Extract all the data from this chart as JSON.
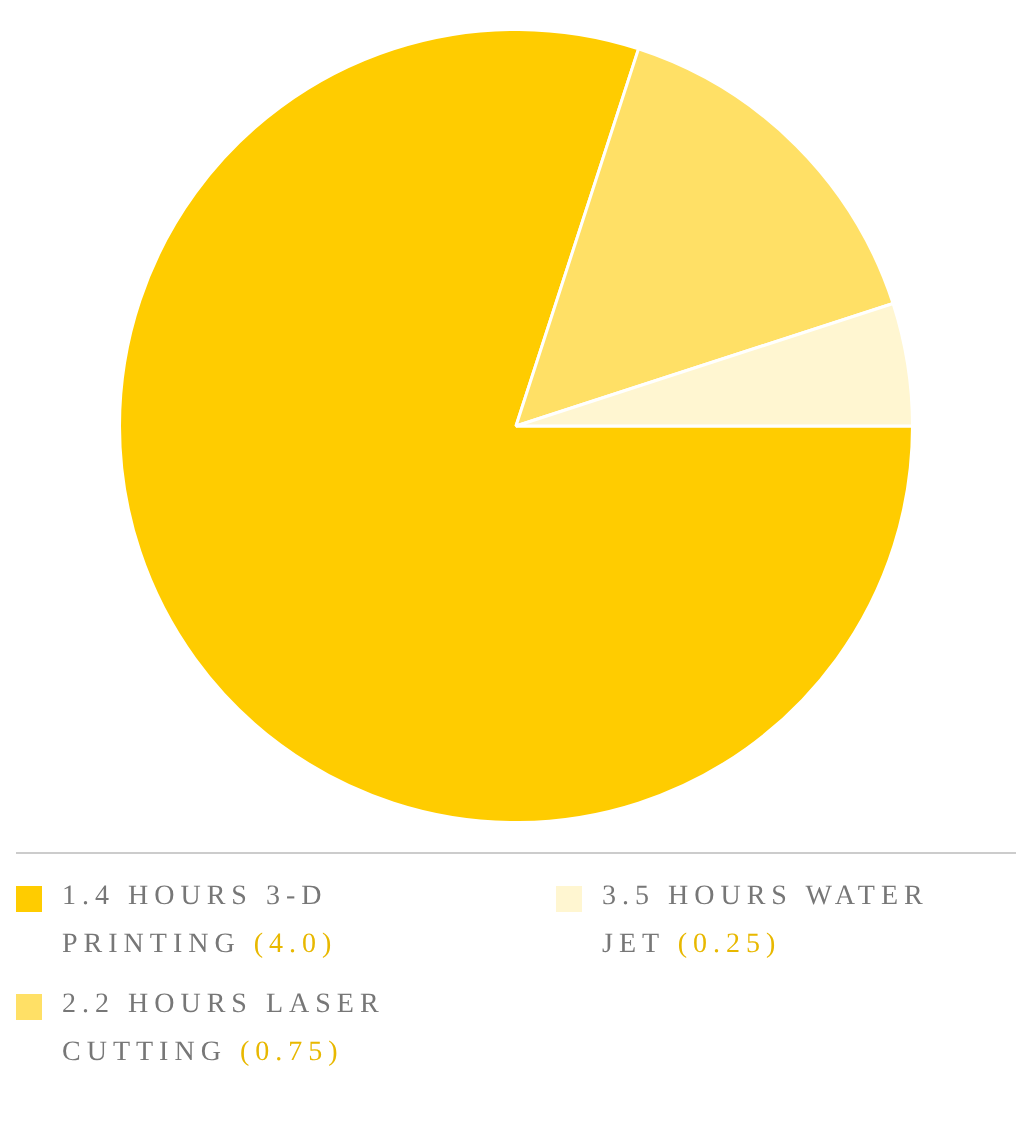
{
  "chart_data": {
    "type": "pie",
    "categories": [
      "1.4 HOURS 3-D PRINTING",
      "2.2 HOURS LASER CUTTING",
      "3.5 HOURS WATER JET"
    ],
    "values": [
      4.0,
      0.75,
      0.25
    ],
    "value_labels": [
      "(4.0)",
      "(0.75)",
      "(0.25)"
    ],
    "colors": [
      "#ffcc00",
      "#ffe066",
      "#fff6d1"
    ],
    "legend": "bottom"
  }
}
